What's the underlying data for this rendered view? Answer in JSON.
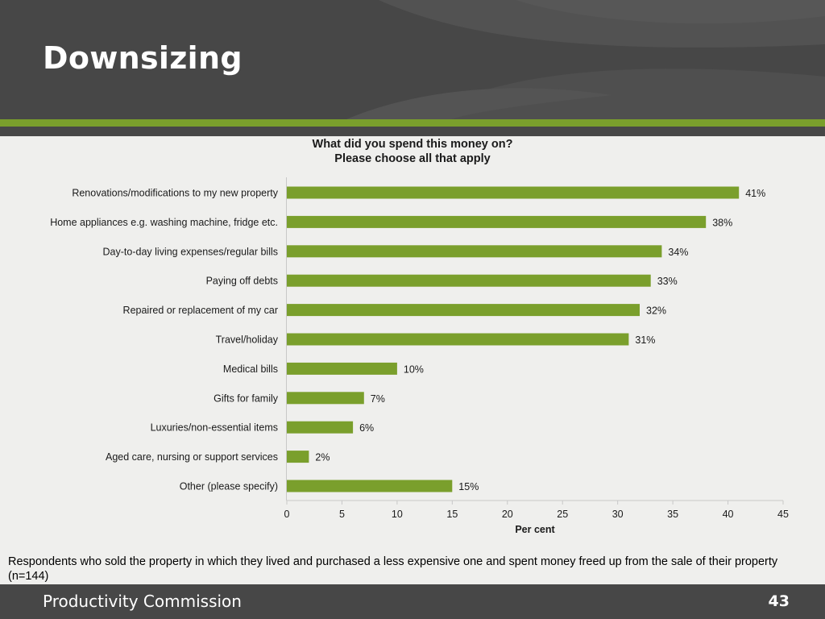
{
  "slide": {
    "title": "Downsizing",
    "footnote": "Respondents who sold the property in which they lived and purchased a less expensive one and spent money freed up from the sale of their property (n=144)",
    "footer_org": "Productivity Commission",
    "page_number": "43"
  },
  "colors": {
    "header": "#474747",
    "accent_green": "#7a9f2c",
    "bar": "#7a9f2c",
    "background": "#efefed"
  },
  "chart_data": {
    "type": "bar",
    "orientation": "horizontal",
    "title_line1": "What did you spend this money on?",
    "title_line2": "Please choose all that apply",
    "xlabel": "Per cent",
    "ylabel": "",
    "xlim": [
      0,
      45
    ],
    "xticks": [
      0,
      5,
      10,
      15,
      20,
      25,
      30,
      35,
      40,
      45
    ],
    "grid": false,
    "categories": [
      "Renovations/modifications to my new property",
      "Home appliances e.g. washing machine, fridge etc.",
      "Day-to-day living expenses/regular bills",
      "Paying off debts",
      "Repaired or replacement of my car",
      "Travel/holiday",
      "Medical bills",
      "Gifts for family",
      "Luxuries/non-essential items",
      "Aged care, nursing or support services",
      "Other (please specify)"
    ],
    "values": [
      41,
      38,
      34,
      33,
      32,
      31,
      10,
      7,
      6,
      2,
      15
    ],
    "data_labels": [
      "41%",
      "38%",
      "34%",
      "33%",
      "32%",
      "31%",
      "10%",
      "7%",
      "6%",
      "2%",
      "15%"
    ]
  }
}
